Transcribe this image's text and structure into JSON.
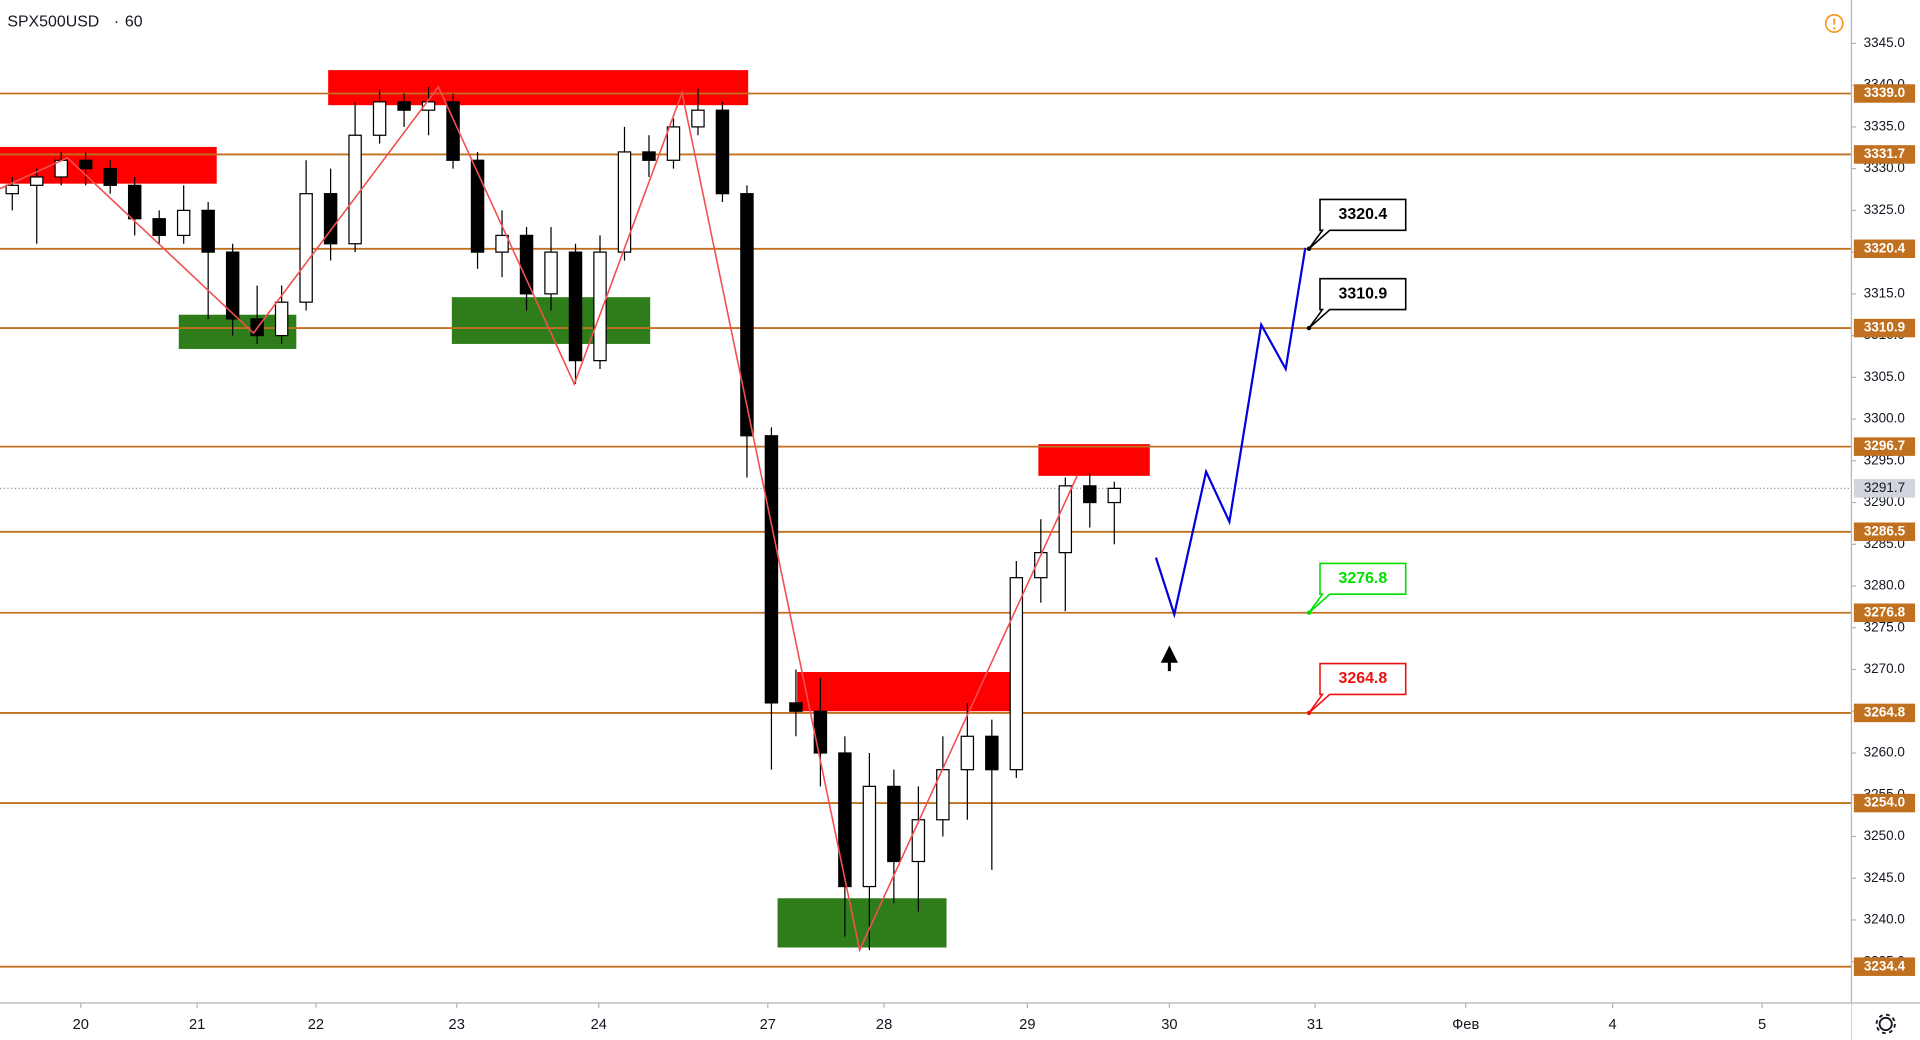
{
  "chart_data": {
    "type": "candlestick",
    "title": "SPX500USD",
    "interval": "60",
    "up_color": "#ffffff",
    "down_color": "#000000",
    "xlim": [
      0,
      302.4
    ],
    "xticks": [
      {
        "value": 13.2,
        "label": "20"
      },
      {
        "value": 32.2,
        "label": "21"
      },
      {
        "value": 51.6,
        "label": "22"
      },
      {
        "value": 74.6,
        "label": "23"
      },
      {
        "value": 97.8,
        "label": "24"
      },
      {
        "value": 125.4,
        "label": "27"
      },
      {
        "value": 144.4,
        "label": "28"
      },
      {
        "value": 167.8,
        "label": "29"
      },
      {
        "value": 191,
        "label": "30"
      },
      {
        "value": 214.8,
        "label": "31"
      },
      {
        "value": 239.4,
        "label": "Фев"
      },
      {
        "value": 263.4,
        "label": "4"
      },
      {
        "value": 287.8,
        "label": "5"
      }
    ],
    "ylim": [
      3230.2,
      3350.2
    ],
    "yticks": [
      {
        "value": 3235,
        "label": "3235.0"
      },
      {
        "value": 3240,
        "label": "3240.0"
      },
      {
        "value": 3245,
        "label": "3245.0"
      },
      {
        "value": 3250,
        "label": "3250.0"
      },
      {
        "value": 3255,
        "label": "3255.0"
      },
      {
        "value": 3260,
        "label": "3260.0"
      },
      {
        "value": 3265,
        "label": "3265.0"
      },
      {
        "value": 3270,
        "label": "3270.0"
      },
      {
        "value": 3275,
        "label": "3275.0"
      },
      {
        "value": 3280,
        "label": "3280.0"
      },
      {
        "value": 3285,
        "label": "3285.0"
      },
      {
        "value": 3290,
        "label": "3290.0"
      },
      {
        "value": 3295,
        "label": "3295.0"
      },
      {
        "value": 3300,
        "label": "3300.0"
      },
      {
        "value": 3305,
        "label": "3305.0"
      },
      {
        "value": 3310,
        "label": "3310.0"
      },
      {
        "value": 3315,
        "label": "3315.0"
      },
      {
        "value": 3320,
        "label": "3320.0"
      },
      {
        "value": 3325,
        "label": "3325.0"
      },
      {
        "value": 3330,
        "label": "3330.0"
      },
      {
        "value": 3335,
        "label": "3335.0"
      },
      {
        "value": 3340,
        "label": "3340.0"
      },
      {
        "value": 3345,
        "label": "3345.0"
      }
    ],
    "x": [
      2,
      6,
      10,
      14,
      18,
      22,
      26,
      30,
      34,
      38,
      42,
      46,
      50,
      54,
      58,
      62,
      66,
      70,
      74,
      78,
      82,
      86,
      90,
      94,
      98,
      102,
      106,
      110,
      114,
      118,
      122,
      126,
      130,
      134,
      138,
      142,
      146,
      150,
      154,
      158,
      162,
      166,
      170,
      174,
      178,
      182
    ],
    "open": [
      3327,
      3328,
      3329,
      3331,
      3330,
      3328,
      3324,
      3322,
      3325,
      3320,
      3312,
      3310,
      3314,
      3327,
      3321,
      3334,
      3338,
      3337,
      3338,
      3331,
      3320,
      3322,
      3315,
      3320,
      3307,
      3320,
      3332,
      3331,
      3335,
      3337,
      3327,
      3298,
      3266,
      3265,
      3260,
      3244,
      3256,
      3247,
      3252,
      3258,
      3262,
      3258,
      3281,
      3284,
      3292,
      3290
    ],
    "high": [
      3329,
      3330,
      3332,
      3332,
      3331,
      3329,
      3325,
      3328,
      3326,
      3321,
      3316,
      3316,
      3331,
      3330,
      3338,
      3339.5,
      3339,
      3339.8,
      3339,
      3332,
      3325,
      3323,
      3323,
      3321,
      3322,
      3335,
      3334,
      3336,
      3339.6,
      3338,
      3328,
      3299,
      3270,
      3269,
      3262,
      3260,
      3258,
      3256,
      3262,
      3266,
      3264,
      3283,
      3288,
      3293,
      3293.5,
      3292.5
    ],
    "low": [
      3325,
      3321,
      3328,
      3328,
      3327,
      3322,
      3321,
      3321,
      3312,
      3310,
      3309,
      3309,
      3313,
      3319,
      3320,
      3333,
      3335,
      3334,
      3330,
      3318,
      3317,
      3313,
      3313,
      3304.2,
      3306,
      3319,
      3329,
      3330,
      3334,
      3326,
      3293,
      3258,
      3262,
      3256,
      3238,
      3236.4,
      3242,
      3241,
      3250,
      3252,
      3246,
      3257,
      3278,
      3277,
      3287,
      3285
    ],
    "close": [
      3328,
      3329,
      3331,
      3330,
      3328,
      3324,
      3322,
      3325,
      3320,
      3312,
      3310,
      3314,
      3327,
      3321,
      3334,
      3338,
      3337,
      3338,
      3331,
      3320,
      3322,
      3315,
      3320,
      3307,
      3320,
      3332,
      3331,
      3335,
      3337,
      3327,
      3298,
      3266,
      3265,
      3260,
      3244,
      3256,
      3247,
      3252,
      3258,
      3262,
      3258,
      3281,
      3284,
      3292,
      3290,
      3291.7
    ],
    "level_color": "#c0701f",
    "levels": [
      {
        "value": 3339,
        "label": "3339.0"
      },
      {
        "value": 3331.7,
        "label": "3331.7"
      },
      {
        "value": 3320.4,
        "label": "3320.4"
      },
      {
        "value": 3310.9,
        "label": "3310.9"
      },
      {
        "value": 3296.7,
        "label": "3296.7"
      },
      {
        "value": 3286.5,
        "label": "3286.5"
      },
      {
        "value": 3276.8,
        "label": "3276.8"
      },
      {
        "value": 3264.8,
        "label": "3264.8"
      },
      {
        "value": 3254,
        "label": "3254.0"
      },
      {
        "value": 3234.4,
        "label": "3234.4"
      }
    ],
    "last_price": {
      "value": 3291.7,
      "label": "3291.7"
    },
    "zones": [
      {
        "x": [
          0,
          35.4
        ],
        "y": [
          3328.2,
          3332.6
        ],
        "color": "#ff0000"
      },
      {
        "x": [
          53.6,
          122.2
        ],
        "y": [
          3337.6,
          3341.8
        ],
        "color": "#ff0000"
      },
      {
        "x": [
          29.2,
          48.4
        ],
        "y": [
          3308.4,
          3312.5
        ],
        "color": "#2e7d1a"
      },
      {
        "x": [
          73.8,
          106.2
        ],
        "y": [
          3309,
          3314.6
        ],
        "color": "#2e7d1a"
      },
      {
        "x": [
          169.6,
          187.8
        ],
        "y": [
          3293.2,
          3297
        ],
        "color": "#ff0000"
      },
      {
        "x": [
          130.2,
          165.6
        ],
        "y": [
          3265,
          3269.7
        ],
        "color": "#ff0000"
      },
      {
        "x": [
          127,
          154.6
        ],
        "y": [
          3236.7,
          3242.6
        ],
        "color": "#2e7d1a"
      }
    ],
    "zigzag": {
      "color": "#f25050",
      "x": [
        0,
        11,
        41.4,
        71.6,
        93.8,
        111.4,
        140.4,
        176
      ],
      "y": [
        3327.6,
        3331.3,
        3310.3,
        3339.8,
        3304.2,
        3339.1,
        3236.4,
        3293.3
      ]
    },
    "projection": {
      "color": "#0000e0",
      "x": [
        188.8,
        191.8,
        197,
        200.8,
        206,
        210,
        213.2
      ],
      "y": [
        3283.4,
        3276.6,
        3293.7,
        3287.7,
        3311.3,
        3306,
        3320.5
      ]
    },
    "callouts": [
      {
        "x": 213.8,
        "value": 3320.4,
        "label": "3320.4",
        "color": "#000000"
      },
      {
        "x": 213.8,
        "value": 3310.9,
        "label": "3310.9",
        "color": "#000000"
      },
      {
        "x": 213.8,
        "value": 3276.8,
        "label": "3276.8",
        "color": "#00e000"
      },
      {
        "x": 213.8,
        "value": 3264.8,
        "label": "3264.8",
        "color": "#ee1111"
      }
    ]
  }
}
